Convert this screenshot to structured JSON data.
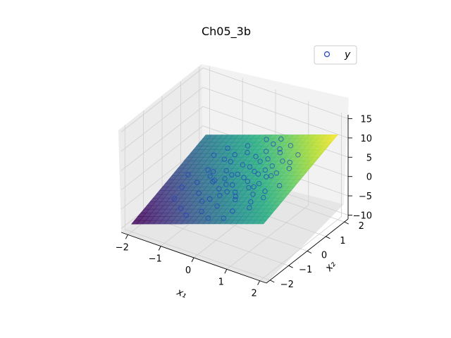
{
  "chart_data": {
    "type": "scatter",
    "subtype": "3d-scatter-with-surface",
    "title": "Ch05_3b",
    "xlabel": "x₁",
    "ylabel": "x₂",
    "zlabel": "",
    "x_ticks": [
      "−2",
      "−1",
      "0",
      "1",
      "2"
    ],
    "y_ticks": [
      "−2",
      "−1",
      "0",
      "1",
      "2"
    ],
    "z_ticks": [
      "−10",
      "−5",
      "0",
      "5",
      "10",
      "15"
    ],
    "xlim": [
      -2.2,
      2.2
    ],
    "ylim": [
      -2.2,
      2.2
    ],
    "zlim": [
      -11,
      16
    ],
    "grid": true,
    "legend": {
      "position": "upper-right",
      "entries": [
        "y"
      ]
    },
    "surface": {
      "formula": "z = 1 + 3*x1 + 2*x2",
      "coef": {
        "intercept": 1,
        "x1": 3,
        "x2": 2
      },
      "x1_range": [
        -2,
        2
      ],
      "x2_range": [
        -2,
        2
      ],
      "colormap": "viridis"
    },
    "series": [
      {
        "name": "y",
        "marker": "open-circle",
        "color": "#1f3fbf",
        "points": [
          [
            -1.42,
            -0.31,
            -4.1
          ],
          [
            -1.1,
            0.52,
            -1.8
          ],
          [
            -0.95,
            -1.2,
            -4.9
          ],
          [
            -0.8,
            0.1,
            -0.9
          ],
          [
            -0.72,
            -0.65,
            -2.3
          ],
          [
            -0.6,
            0.85,
            0.6
          ],
          [
            -0.55,
            -0.2,
            -0.5
          ],
          [
            -0.48,
            0.4,
            0.3
          ],
          [
            -0.4,
            -1.05,
            -1.9
          ],
          [
            -0.35,
            1.3,
            2.0
          ],
          [
            -0.3,
            0.0,
            0.3
          ],
          [
            -0.22,
            -0.45,
            -0.4
          ],
          [
            -0.15,
            0.7,
            1.7
          ],
          [
            -0.1,
            -1.6,
            -1.6
          ],
          [
            -0.05,
            0.25,
            1.2
          ],
          [
            0.0,
            -0.8,
            -0.2
          ],
          [
            0.05,
            1.05,
            3.1
          ],
          [
            0.1,
            -0.3,
            1.0
          ],
          [
            0.15,
            0.55,
            2.6
          ],
          [
            0.2,
            -1.3,
            -0.4
          ],
          [
            0.25,
            0.05,
            2.0
          ],
          [
            0.3,
            1.55,
            5.2
          ],
          [
            0.35,
            -0.6,
            1.0
          ],
          [
            0.4,
            0.35,
            2.9
          ],
          [
            0.45,
            -0.1,
            2.2
          ],
          [
            0.5,
            0.9,
            4.4
          ],
          [
            0.55,
            -0.95,
            1.0
          ],
          [
            0.6,
            0.2,
            3.4
          ],
          [
            0.65,
            -0.4,
            2.3
          ],
          [
            0.7,
            1.2,
            5.5
          ],
          [
            0.75,
            -1.45,
            0.5
          ],
          [
            0.8,
            0.6,
            4.6
          ],
          [
            0.85,
            -0.2,
            3.2
          ],
          [
            0.9,
            0.1,
            4.0
          ],
          [
            0.95,
            -0.7,
            2.6
          ],
          [
            1.0,
            0.8,
            5.7
          ],
          [
            1.05,
            -1.0,
            2.1
          ],
          [
            1.1,
            0.3,
            4.8
          ],
          [
            1.2,
            -0.5,
            3.4
          ],
          [
            1.3,
            1.1,
            7.1
          ],
          [
            -1.25,
            1.1,
            -0.6
          ],
          [
            -1.05,
            -0.15,
            -2.4
          ],
          [
            -0.85,
            0.95,
            0.1
          ],
          [
            -0.65,
            -1.45,
            -4.8
          ],
          [
            -0.45,
            1.5,
            2.7
          ],
          [
            -0.25,
            -0.9,
            -1.4
          ],
          [
            -0.05,
            1.8,
            4.4
          ],
          [
            0.18,
            -1.75,
            -1.9
          ],
          [
            0.42,
            1.75,
            6.1
          ],
          [
            0.62,
            -1.7,
            -0.8
          ],
          [
            0.88,
            1.45,
            6.9
          ],
          [
            1.15,
            -1.25,
            1.8
          ],
          [
            1.4,
            0.45,
            6.3
          ],
          [
            1.5,
            -0.25,
            4.8
          ],
          [
            -1.55,
            0.25,
            -3.4
          ],
          [
            -1.35,
            -0.85,
            -4.8
          ],
          [
            -0.9,
            0.45,
            -1.4
          ],
          [
            -0.7,
            1.25,
            0.6
          ],
          [
            -0.2,
            0.2,
            0.8
          ],
          [
            0.08,
            -0.55,
            0.1
          ],
          [
            0.32,
            0.8,
            3.6
          ],
          [
            0.58,
            1.4,
            5.3
          ],
          [
            0.78,
            -0.35,
            2.7
          ],
          [
            1.02,
            0.15,
            4.4
          ],
          [
            1.25,
            0.75,
            6.3
          ],
          [
            -0.58,
            -0.05,
            -0.8
          ],
          [
            -0.12,
            -0.25,
            0.3
          ],
          [
            0.48,
            -0.8,
            1.0
          ],
          [
            0.7,
            0.4,
            4.0
          ],
          [
            1.35,
            -0.85,
            3.5
          ],
          [
            -1.0,
            1.4,
            0.8
          ],
          [
            0.25,
            1.25,
            4.3
          ]
        ]
      }
    ]
  },
  "colors": {
    "pane_back": "#f2f2f2",
    "pane_side": "#ebebeb",
    "pane_floor": "#e6e6e6",
    "grid": "#cfcfcf",
    "marker": "#1f3fbf"
  }
}
